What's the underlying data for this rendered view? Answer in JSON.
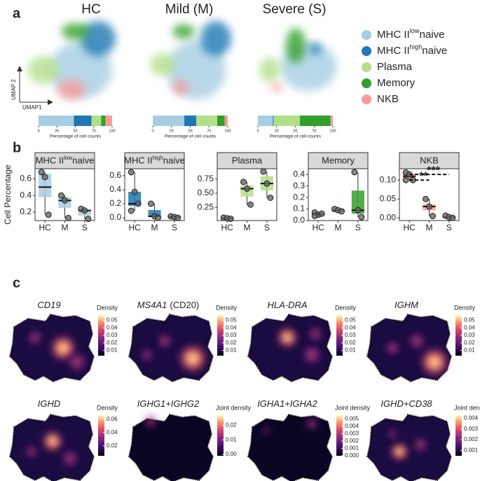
{
  "panel_labels": [
    "a",
    "b",
    "c"
  ],
  "panel_a": {
    "titles": [
      "HC",
      "Mild (M)",
      "Severe (S)"
    ],
    "axis_x": "UMAP1",
    "axis_y": "UMAP 2",
    "legend": [
      {
        "name": "MHC II",
        "sup": "low",
        "suffix": "naive",
        "color": "#a6cee3"
      },
      {
        "name": "MHC II",
        "sup": "high",
        "suffix": "naive",
        "color": "#1f78b4"
      },
      {
        "name": "Plasma",
        "color": "#b2df8a"
      },
      {
        "name": "Memory",
        "color": "#33a02c"
      },
      {
        "name": "NKB",
        "color": "#fb9a99"
      }
    ]
  },
  "panel_b": {
    "ylabel": "Cell Percentage"
  },
  "chart_data": [
    {
      "type": "stacked_bar",
      "xlabel": "Percentage of cell counts",
      "xlim": [
        0,
        100
      ],
      "xticks": [
        0,
        25,
        50,
        75,
        100
      ],
      "series": [
        {
          "color": "#a6cee3",
          "values": [
            48
          ]
        },
        {
          "color": "#1f78b4",
          "values": [
            24
          ]
        },
        {
          "color": "#b2df8a",
          "values": [
            13
          ]
        },
        {
          "color": "#33a02c",
          "values": [
            6
          ]
        },
        {
          "color": "#fb9a99",
          "values": [
            9
          ]
        }
      ]
    },
    {
      "type": "stacked_bar",
      "xlabel": "Percentage of cell counts",
      "xlim": [
        0,
        100
      ],
      "xticks": [
        0,
        25,
        50,
        75,
        100
      ],
      "series": [
        {
          "color": "#a6cee3",
          "values": [
            42
          ]
        },
        {
          "color": "#1f78b4",
          "values": [
            16
          ]
        },
        {
          "color": "#b2df8a",
          "values": [
            28
          ]
        },
        {
          "color": "#33a02c",
          "values": [
            10
          ]
        },
        {
          "color": "#fb9a99",
          "values": [
            4
          ]
        }
      ]
    },
    {
      "type": "stacked_bar",
      "xlabel": "Percentage of cell counts",
      "xlim": [
        0,
        100
      ],
      "xticks": [
        0,
        25,
        50,
        75,
        100
      ],
      "series": [
        {
          "color": "#a6cee3",
          "values": [
            20
          ]
        },
        {
          "color": "#1f78b4",
          "values": [
            1
          ]
        },
        {
          "color": "#b2df8a",
          "values": [
            35
          ]
        },
        {
          "color": "#33a02c",
          "values": [
            41
          ]
        },
        {
          "color": "#fb9a99",
          "values": [
            3
          ]
        }
      ]
    },
    {
      "type": "box",
      "title": "MHC II",
      "title_sup": "low",
      "title_suffix": "naive",
      "color": "#a6cee3",
      "categories": [
        "HC",
        "M",
        "S"
      ],
      "ylim": [
        0.1,
        0.72
      ],
      "yticks": [
        0.2,
        0.4,
        0.6
      ],
      "boxes": [
        {
          "whisker_low": 0.17,
          "q1": 0.38,
          "median": 0.5,
          "q3": 0.66,
          "whisker_high": 0.68,
          "points": [
            0.68,
            0.62,
            0.17
          ]
        },
        {
          "whisker_low": 0.13,
          "q1": 0.25,
          "median": 0.34,
          "q3": 0.38,
          "whisker_high": 0.4,
          "points": [
            0.4,
            0.34,
            0.13
          ]
        },
        {
          "whisker_low": 0.12,
          "q1": 0.16,
          "median": 0.22,
          "q3": 0.23,
          "whisker_high": 0.24,
          "points": [
            0.24,
            0.22,
            0.12
          ]
        }
      ]
    },
    {
      "type": "box",
      "title": "MHC II",
      "title_sup": "high",
      "title_suffix": "naive",
      "color": "#1f78b4",
      "categories": [
        "HC",
        "M",
        "S"
      ],
      "ylim": [
        -0.04,
        0.7
      ],
      "yticks": [
        {
          "value": 0,
          "label": "0.0"
        },
        0.2,
        0.4,
        0.6
      ],
      "boxes": [
        {
          "whisker_low": 0.1,
          "q1": 0.17,
          "median": 0.2,
          "q3": 0.37,
          "whisker_high": 0.65,
          "points": [
            0.65,
            0.37,
            0.2,
            0.1
          ]
        },
        {
          "whisker_low": 0.0,
          "q1": 0.01,
          "median": 0.02,
          "q3": 0.11,
          "whisker_high": 0.2,
          "points": [
            0.2,
            0.02,
            0.0
          ]
        },
        {
          "whisker_low": 0.0,
          "q1": 0.005,
          "median": 0.01,
          "q3": 0.015,
          "whisker_high": 0.02,
          "points": [
            0.02,
            0.01,
            0.0
          ]
        }
      ]
    },
    {
      "type": "box",
      "title": "Plasma",
      "color": "#b2df8a",
      "categories": [
        "HC",
        "M",
        "S"
      ],
      "ylim": [
        0.02,
        0.93
      ],
      "yticks": [
        0.25,
        {
          "value": 0.5,
          "label": "0.50"
        },
        0.75
      ],
      "boxes": [
        {
          "whisker_low": 0.05,
          "q1": 0.055,
          "median": 0.06,
          "q3": 0.065,
          "whisker_high": 0.07,
          "points": [
            0.07,
            0.06,
            0.05
          ]
        },
        {
          "whisker_low": 0.3,
          "q1": 0.44,
          "median": 0.58,
          "q3": 0.64,
          "whisker_high": 0.7,
          "points": [
            0.7,
            0.58,
            0.3
          ]
        },
        {
          "whisker_low": 0.42,
          "q1": 0.55,
          "median": 0.67,
          "q3": 0.8,
          "whisker_high": 0.88,
          "points": [
            0.88,
            0.67,
            0.42
          ]
        }
      ]
    },
    {
      "type": "box",
      "title": "Memory",
      "color": "#33a02c",
      "categories": [
        "HC",
        "M",
        "S"
      ],
      "ylim": [
        0,
        0.45
      ],
      "yticks": [
        {
          "value": 0,
          "label": "0.0"
        },
        0.1,
        0.2,
        0.3,
        0.4
      ],
      "boxes": [
        {
          "whisker_low": 0.04,
          "q1": 0.05,
          "median": 0.055,
          "q3": 0.065,
          "whisker_high": 0.07,
          "points": [
            0.07,
            0.05,
            0.06,
            0.04
          ]
        },
        {
          "whisker_low": 0.08,
          "q1": 0.085,
          "median": 0.09,
          "q3": 0.095,
          "whisker_high": 0.1,
          "points": [
            0.1,
            0.09,
            0.08
          ]
        },
        {
          "whisker_low": 0.03,
          "q1": 0.06,
          "median": 0.09,
          "q3": 0.26,
          "whisker_high": 0.42,
          "points": [
            0.42,
            0.09,
            0.03
          ]
        }
      ]
    },
    {
      "type": "box",
      "title": "NKB",
      "color": "#fb9a99",
      "categories": [
        "HC",
        "M",
        "S"
      ],
      "ylim": [
        -0.007,
        0.13
      ],
      "yticks": [
        {
          "value": 0,
          "label": "0.00"
        },
        0.05,
        {
          "value": 0.1,
          "label": "0.10"
        }
      ],
      "boxes": [
        {
          "whisker_low": 0.1,
          "q1": 0.102,
          "median": 0.11,
          "q3": 0.117,
          "whisker_high": 0.12,
          "points": [
            0.12,
            0.115,
            0.1,
            0.1
          ]
        },
        {
          "whisker_low": 0.005,
          "q1": 0.02,
          "median": 0.03,
          "q3": 0.036,
          "whisker_high": 0.05,
          "points": [
            0.05,
            0.03,
            0.005
          ]
        },
        {
          "whisker_low": 0.0,
          "q1": 0.001,
          "median": 0.002,
          "q3": 0.005,
          "whisker_high": 0.006,
          "points": [
            0.006,
            0.002,
            0.0
          ]
        }
      ],
      "annotations": [
        {
          "text": "***",
          "from": 0,
          "to": 2,
          "y": 0.115
        },
        {
          "text": "**",
          "from": 0,
          "to": 1,
          "y": 0.1
        }
      ]
    }
  ],
  "panel_c": {
    "maps": [
      {
        "gene": "CD19",
        "legend_title": "Density",
        "clim": [
          0.003,
          0.057
        ],
        "ticks": [
          0.01,
          0.02,
          0.03,
          0.04,
          0.05
        ]
      },
      {
        "gene": "MS4A1",
        "note": "(CD20)",
        "legend_title": "Density",
        "clim": [
          0.003,
          0.057
        ],
        "ticks": [
          0.01,
          0.02,
          0.03,
          0.04,
          0.05
        ]
      },
      {
        "gene": "HLA-DRA",
        "legend_title": "Density",
        "clim": [
          0.003,
          0.057
        ],
        "ticks": [
          0.01,
          0.02,
          0.03,
          0.04,
          0.05
        ]
      },
      {
        "gene": "IGHM",
        "legend_title": "Density",
        "clim": [
          0.003,
          0.057
        ],
        "ticks": [
          0.01,
          0.02,
          0.03,
          0.04,
          0.05
        ]
      },
      {
        "gene": "IGHD",
        "legend_title": "Density",
        "clim": [
          0.005,
          0.066
        ],
        "ticks": [
          0.02,
          0.04,
          0.06
        ]
      },
      {
        "gene": "IGHG1+IGHG2",
        "legend_title": "Joint density",
        "clim": [
          -0.001,
          0.027
        ],
        "ticks": [
          {
            "value": 0,
            "label": "0.00"
          },
          0.01,
          0.02
        ]
      },
      {
        "gene": "IGHA1+IGHA2",
        "legend_title": "Joint density",
        "clim": [
          0,
          0.0055
        ],
        "ticks": [
          {
            "value": 0,
            "label": "0.000"
          },
          0.001,
          0.002,
          0.003,
          0.004,
          0.005
        ]
      },
      {
        "gene": "IGHD+CD38",
        "legend_title": "Joint density",
        "clim": [
          0.0005,
          0.0043
        ],
        "ticks": [
          0.001,
          0.002,
          0.003,
          0.004
        ]
      }
    ]
  }
}
